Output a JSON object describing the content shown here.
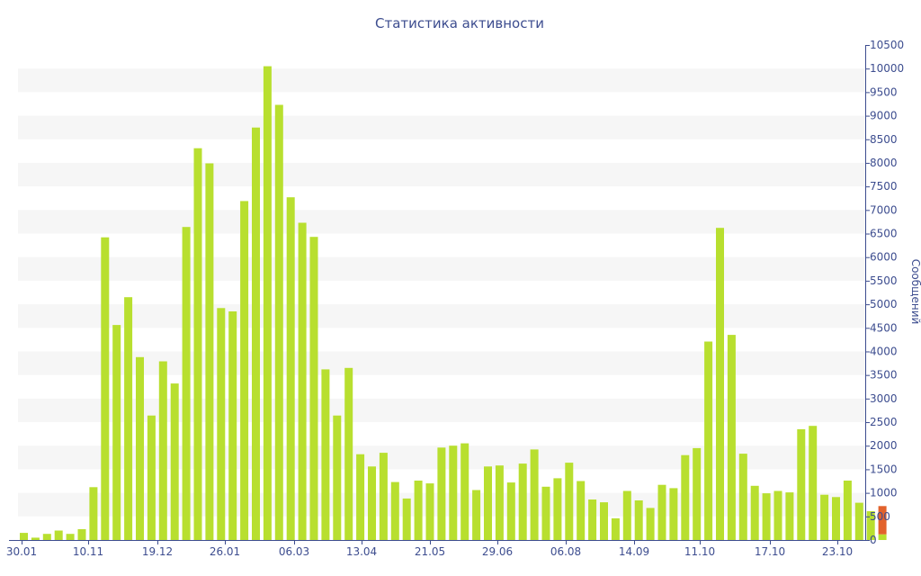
{
  "chart_data": {
    "type": "bar",
    "title": "Статистика активности",
    "xlabel": "",
    "ylabel": "Сообщений",
    "ylim": [
      0,
      10500
    ],
    "y_axis_side": "right",
    "grid": "alternating horizontal bands",
    "legend": "none",
    "x_tick_labels": [
      "30.01",
      "10.11",
      "19.12",
      "26.01",
      "06.03",
      "13.04",
      "21.05",
      "29.06",
      "06.08",
      "14.09",
      "11.10",
      "17.10",
      "23.10"
    ],
    "y_tick_labels": [
      "0",
      "500",
      "1000",
      "1500",
      "2000",
      "2500",
      "3000",
      "3500",
      "4000",
      "4500",
      "5000",
      "5500",
      "6000",
      "6500",
      "7000",
      "7500",
      "8000",
      "8500",
      "9000",
      "9500",
      "10000",
      "10500"
    ],
    "series": [
      {
        "color": "#b8df2f",
        "values": [
          150,
          50,
          130,
          200,
          130,
          230,
          1120,
          6420,
          4560,
          5150,
          3880,
          2640,
          3790,
          3320,
          6640,
          8310,
          7990,
          4920,
          4850,
          7190,
          8750,
          10050,
          9230,
          7270,
          6730,
          6430,
          3620,
          2640,
          3650,
          1820,
          1560,
          1850,
          1230,
          880,
          1260,
          1200,
          1960,
          2000,
          2050,
          1060,
          1560,
          1580,
          1220,
          1620,
          1920,
          1130,
          1310,
          1640,
          1250,
          860,
          800,
          460,
          1040,
          840,
          680,
          1170,
          1100,
          1800,
          1950,
          4210,
          6620,
          4350,
          1830,
          1150,
          990,
          1040,
          1010,
          2350,
          2420,
          960,
          910,
          1260,
          790,
          610,
          120
        ]
      },
      {
        "color": "#e2622c",
        "values": [
          0,
          0,
          0,
          0,
          0,
          0,
          0,
          0,
          0,
          0,
          0,
          0,
          0,
          0,
          0,
          0,
          0,
          0,
          0,
          0,
          0,
          0,
          0,
          0,
          0,
          0,
          0,
          0,
          0,
          0,
          0,
          0,
          0,
          0,
          0,
          0,
          0,
          0,
          0,
          0,
          0,
          0,
          0,
          0,
          0,
          0,
          0,
          0,
          0,
          0,
          0,
          0,
          0,
          0,
          0,
          0,
          0,
          0,
          0,
          0,
          0,
          0,
          0,
          0,
          0,
          0,
          0,
          0,
          0,
          0,
          0,
          0,
          0,
          0,
          600
        ]
      }
    ],
    "colors": {
      "band": "#f6f6f6",
      "axis": "#3d4d8f",
      "text": "#3d4d8f"
    }
  }
}
